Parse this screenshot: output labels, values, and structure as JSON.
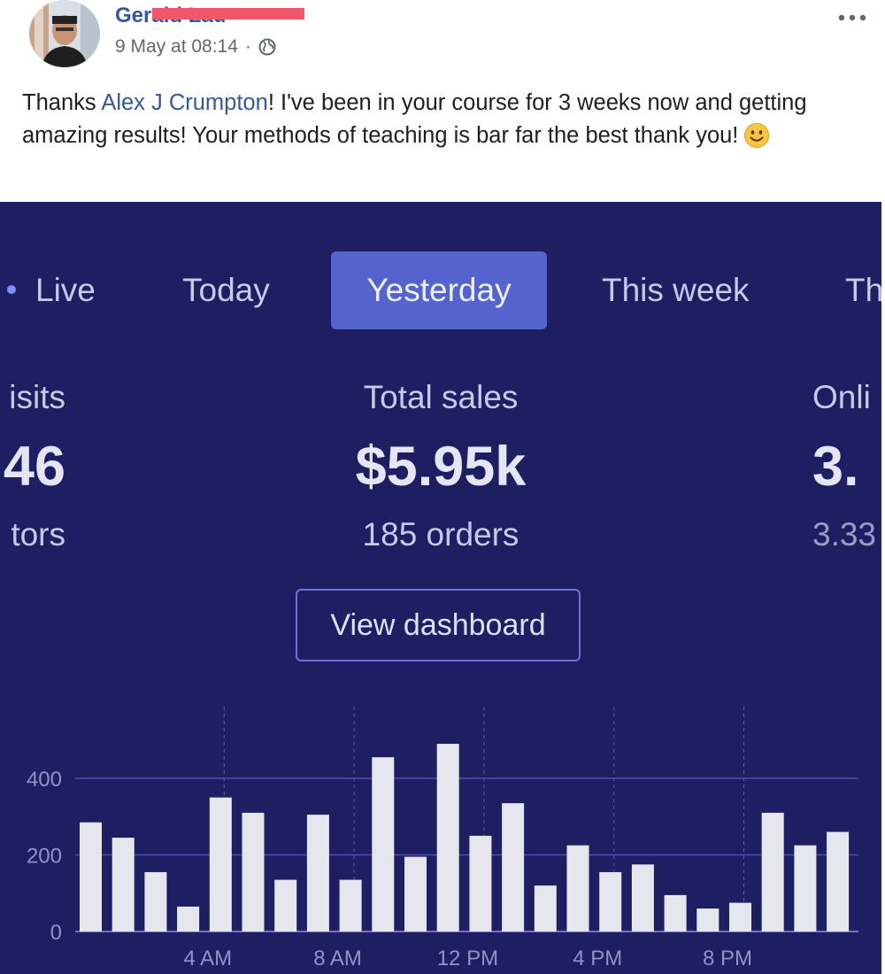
{
  "post": {
    "author_name": "Gerald Lau",
    "date": "9 May at 08:14",
    "separator": "·",
    "text_before": "Thanks ",
    "mention": "Alex J Crumpton",
    "text_after": "! I've been in your course for 3 weeks now and getting amazing results! Your methods of teaching is bar far the best thank you!",
    "icons": {
      "privacy": "globe-icon",
      "menu": "more-options-icon",
      "emoji": "smiley-emoji-icon"
    }
  },
  "dashboard": {
    "tabs": [
      {
        "label": "Live"
      },
      {
        "label": "Today"
      },
      {
        "label": "Yesterday",
        "selected": true
      },
      {
        "label": "This week"
      },
      {
        "label": "Th"
      }
    ],
    "left_metric": {
      "label": "isits",
      "value": "46",
      "sub": "tors"
    },
    "center_metric": {
      "label": "Total sales",
      "value": "$5.95k",
      "sub": "185 orders"
    },
    "right_metric": {
      "label": "Onli",
      "value": "3.",
      "sub": "3.33"
    },
    "view_dashboard_label": "View dashboard",
    "colors": {
      "background": "#1e1e63",
      "selected_tab": "#5563cf",
      "bar": "#e6e6ee"
    }
  },
  "chart_data": {
    "type": "bar",
    "y_ticks": [
      0,
      200,
      400
    ],
    "ylim": [
      0,
      500
    ],
    "x_tick_labels": [
      "4 AM",
      "8 AM",
      "12 PM",
      "4 PM",
      "8 PM"
    ],
    "grid": true,
    "values": [
      285,
      245,
      155,
      65,
      350,
      310,
      135,
      305,
      135,
      455,
      195,
      490,
      250,
      335,
      120,
      225,
      155,
      175,
      95,
      60,
      75,
      310,
      225,
      260
    ]
  }
}
